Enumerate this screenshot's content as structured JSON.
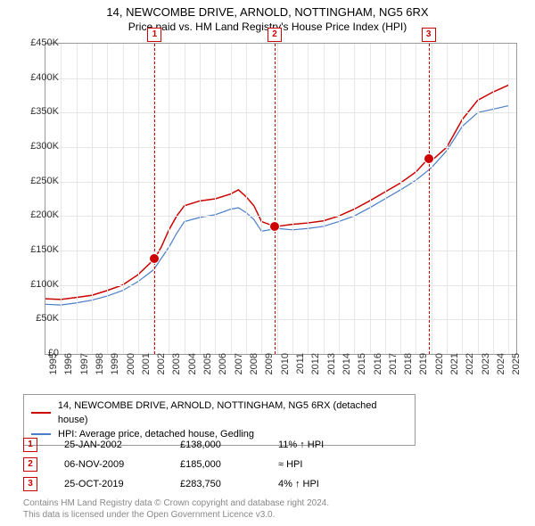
{
  "titles": {
    "line1": "14, NEWCOMBE DRIVE, ARNOLD, NOTTINGHAM, NG5 6RX",
    "line2": "Price paid vs. HM Land Registry's House Price Index (HPI)"
  },
  "chart": {
    "type": "line",
    "background_color": "#ffffff",
    "grid_color": "#e6e6e6",
    "border_color": "#999999",
    "x": {
      "min": 1995,
      "max": 2025.5,
      "ticks": [
        1995,
        1996,
        1997,
        1998,
        1999,
        2000,
        2001,
        2002,
        2003,
        2004,
        2005,
        2006,
        2007,
        2008,
        2009,
        2010,
        2011,
        2012,
        2013,
        2014,
        2015,
        2016,
        2017,
        2018,
        2019,
        2020,
        2021,
        2022,
        2023,
        2024,
        2025
      ],
      "label_fontsize": 11,
      "label_color": "#333333"
    },
    "y": {
      "min": 0,
      "max": 450000,
      "ticks": [
        0,
        50000,
        100000,
        150000,
        200000,
        250000,
        300000,
        350000,
        400000,
        450000
      ],
      "tick_labels": [
        "£0",
        "£50K",
        "£100K",
        "£150K",
        "£200K",
        "£250K",
        "£300K",
        "£350K",
        "£400K",
        "£450K"
      ],
      "label_fontsize": 11,
      "label_color": "#333333"
    },
    "series": [
      {
        "name": "14, NEWCOMBE DRIVE, ARNOLD, NOTTINGHAM, NG5 6RX (detached house)",
        "color": "#cc0000",
        "line_width": 1.5,
        "points": [
          [
            1995,
            80000
          ],
          [
            1996,
            79000
          ],
          [
            1997,
            82000
          ],
          [
            1998,
            85000
          ],
          [
            1999,
            92000
          ],
          [
            2000,
            100000
          ],
          [
            2001,
            115000
          ],
          [
            2002.07,
            138000
          ],
          [
            2002.5,
            155000
          ],
          [
            2003,
            180000
          ],
          [
            2003.5,
            200000
          ],
          [
            2004,
            215000
          ],
          [
            2005,
            222000
          ],
          [
            2006,
            225000
          ],
          [
            2007,
            232000
          ],
          [
            2007.5,
            238000
          ],
          [
            2008,
            228000
          ],
          [
            2008.5,
            215000
          ],
          [
            2009,
            192000
          ],
          [
            2009.85,
            185000
          ],
          [
            2010,
            185000
          ],
          [
            2011,
            188000
          ],
          [
            2012,
            190000
          ],
          [
            2013,
            193000
          ],
          [
            2014,
            200000
          ],
          [
            2015,
            210000
          ],
          [
            2016,
            222000
          ],
          [
            2017,
            235000
          ],
          [
            2018,
            248000
          ],
          [
            2019,
            264000
          ],
          [
            2019.82,
            283750
          ],
          [
            2020,
            280000
          ],
          [
            2021,
            300000
          ],
          [
            2022,
            340000
          ],
          [
            2023,
            368000
          ],
          [
            2024,
            380000
          ],
          [
            2025,
            390000
          ]
        ]
      },
      {
        "name": "HPI: Average price, detached house, Gedling",
        "color": "#4a7ec8",
        "line_width": 1.2,
        "points": [
          [
            1995,
            72000
          ],
          [
            1996,
            71000
          ],
          [
            1997,
            74000
          ],
          [
            1998,
            78000
          ],
          [
            1999,
            84000
          ],
          [
            2000,
            92000
          ],
          [
            2001,
            105000
          ],
          [
            2002,
            122000
          ],
          [
            2003,
            155000
          ],
          [
            2003.5,
            175000
          ],
          [
            2004,
            192000
          ],
          [
            2005,
            198000
          ],
          [
            2006,
            202000
          ],
          [
            2007,
            210000
          ],
          [
            2007.5,
            212000
          ],
          [
            2008,
            205000
          ],
          [
            2008.5,
            195000
          ],
          [
            2009,
            178000
          ],
          [
            2010,
            182000
          ],
          [
            2011,
            180000
          ],
          [
            2012,
            182000
          ],
          [
            2013,
            185000
          ],
          [
            2014,
            192000
          ],
          [
            2015,
            200000
          ],
          [
            2016,
            212000
          ],
          [
            2017,
            225000
          ],
          [
            2018,
            238000
          ],
          [
            2019,
            252000
          ],
          [
            2020,
            270000
          ],
          [
            2021,
            295000
          ],
          [
            2022,
            330000
          ],
          [
            2023,
            350000
          ],
          [
            2024,
            355000
          ],
          [
            2025,
            360000
          ]
        ]
      }
    ],
    "sale_markers": [
      {
        "num": "1",
        "year": 2002.07,
        "price": 138000,
        "date": "25-JAN-2002",
        "price_label": "£138,000",
        "hpi_label": "11% ↑ HPI"
      },
      {
        "num": "2",
        "year": 2009.85,
        "price": 185000,
        "date": "06-NOV-2009",
        "price_label": "£185,000",
        "hpi_label": "≈ HPI"
      },
      {
        "num": "3",
        "year": 2019.82,
        "price": 283750,
        "date": "25-OCT-2019",
        "price_label": "£283,750",
        "hpi_label": "4% ↑ HPI"
      }
    ],
    "marker_line_color": "#cc0000",
    "data_point_color": "#cc0000"
  },
  "legend": {
    "items": [
      {
        "color": "#cc0000",
        "label": "14, NEWCOMBE DRIVE, ARNOLD, NOTTINGHAM, NG5 6RX (detached house)"
      },
      {
        "color": "#4a7ec8",
        "label": "HPI: Average price, detached house, Gedling"
      }
    ]
  },
  "footer": {
    "line1": "Contains HM Land Registry data © Crown copyright and database right 2024.",
    "line2": "This data is licensed under the Open Government Licence v3.0."
  }
}
